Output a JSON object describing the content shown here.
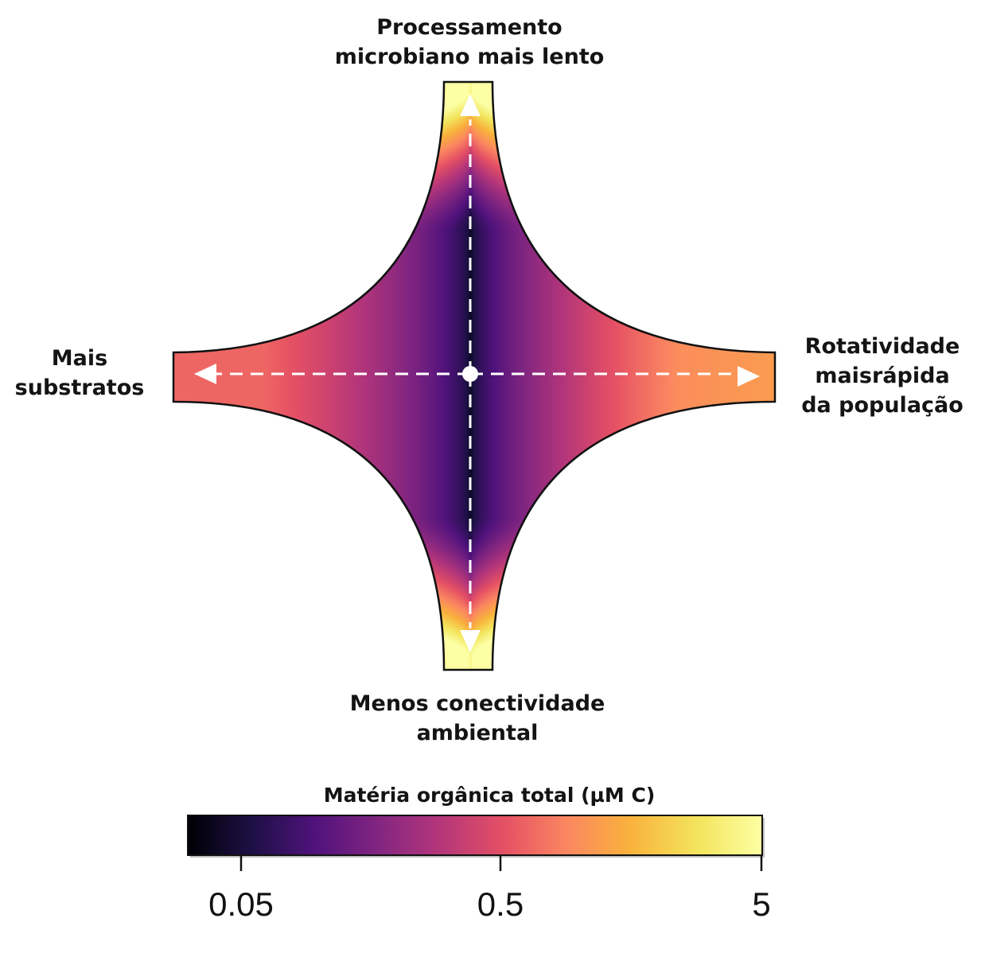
{
  "labels": {
    "top": [
      "Processamento",
      "microbiano mais lento"
    ],
    "bottom": [
      "Menos conectividade",
      "ambiental"
    ],
    "left": [
      "Mais",
      "substratos"
    ],
    "right": [
      "Rotatividade",
      "maisrápida",
      "da população"
    ]
  },
  "colorbar": {
    "title": "Matéria orgânica total (µM C)",
    "scale": "log",
    "ticks": [
      "0.05",
      "0.5",
      "5"
    ],
    "tick_values": [
      0.05,
      0.5,
      5
    ],
    "range": [
      0.025,
      5
    ],
    "colormap": [
      "#000004",
      "#1c1044",
      "#4f127b",
      "#812581",
      "#b5367a",
      "#e55064",
      "#fb8761",
      "#f9b23c",
      "#f3e55d",
      "#fcffa4"
    ]
  },
  "diagram": {
    "center_marker": "white-dot",
    "arrows": [
      "up",
      "down",
      "left",
      "right"
    ],
    "arrow_style": "white-dashed"
  }
}
